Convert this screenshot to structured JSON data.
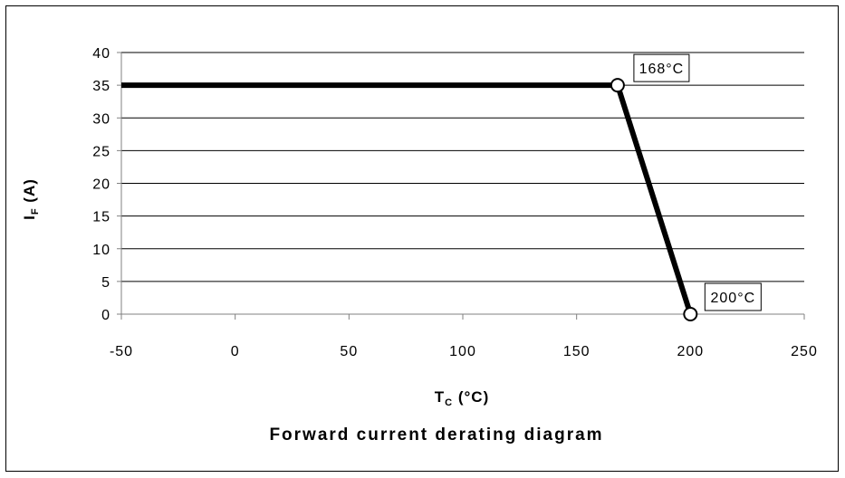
{
  "chart_data": {
    "type": "line",
    "title": "Forward current derating diagram",
    "xlabel_main": "T",
    "xlabel_sub": "C",
    "xlabel_unit": " (°C)",
    "ylabel_main": "I",
    "ylabel_sub": "F",
    "ylabel_unit": " (A)",
    "xlim": [
      -50,
      250
    ],
    "ylim": [
      0,
      40
    ],
    "xticks": [
      -50,
      0,
      50,
      100,
      150,
      200,
      250
    ],
    "yticks": [
      0,
      5,
      10,
      15,
      20,
      25,
      30,
      35,
      40
    ],
    "grid": "horizontal",
    "series": [
      {
        "x": [
          -50,
          168,
          200
        ],
        "y": [
          35,
          35,
          0
        ]
      }
    ],
    "annotations": [
      {
        "text": "168°C",
        "x": 168,
        "y": 35
      },
      {
        "text": "200°C",
        "x": 200,
        "y": 0
      }
    ],
    "colors": {
      "line": "#000000",
      "grid": "#000000",
      "axis": "#808080"
    }
  }
}
